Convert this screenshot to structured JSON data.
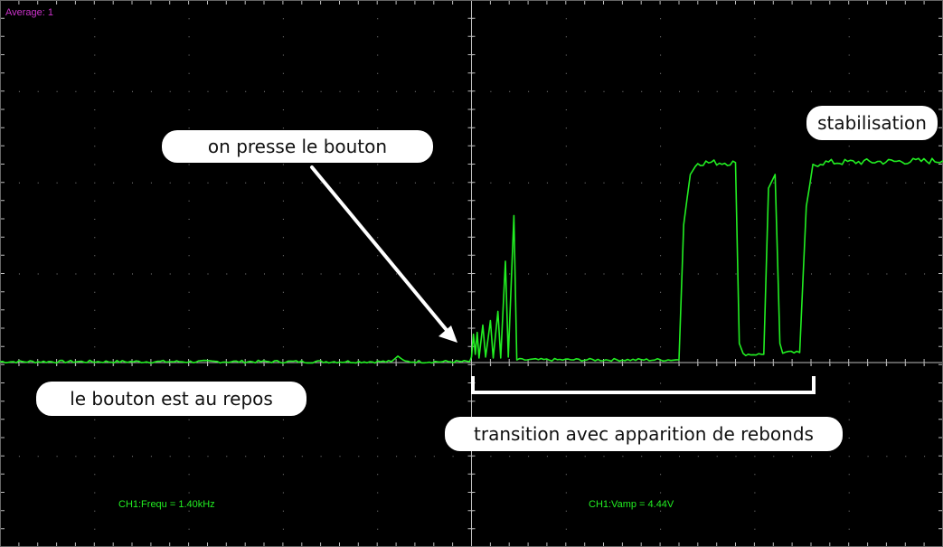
{
  "scope": {
    "average_label": "Average: 1",
    "freq_readout": "CH1:Frequ = 1.40kHz",
    "vamp_readout": "CH1:Vamp = 4.44V"
  },
  "annotations": {
    "stabilisation": "stabilisation",
    "press": "on presse le bouton",
    "rest": "le bouton est au repos",
    "transition": "transition avec apparition de rebonds"
  },
  "colors": {
    "background": "#000000",
    "grid": "#bdbdbd",
    "trace": "#22ee22",
    "average_text": "#cc33cc",
    "label_bg": "#ffffff"
  },
  "chart_data": {
    "type": "line",
    "title": "",
    "xlabel": "",
    "ylabel": "",
    "xlim": [
      0,
      10
    ],
    "ylim": [
      -2,
      4
    ],
    "grid": true,
    "series": [
      {
        "name": "CH1",
        "points": [
          [
            0,
            0
          ],
          [
            4.15,
            0
          ],
          [
            4.22,
            0.06
          ],
          [
            4.3,
            0
          ],
          [
            4.98,
            0
          ],
          [
            5.0,
            0.05
          ],
          [
            5.02,
            0.3
          ],
          [
            5.04,
            0.08
          ],
          [
            5.06,
            0.32
          ],
          [
            5.08,
            0.04
          ],
          [
            5.12,
            0.4
          ],
          [
            5.15,
            0.05
          ],
          [
            5.2,
            0.45
          ],
          [
            5.23,
            0.04
          ],
          [
            5.28,
            0.55
          ],
          [
            5.31,
            0.04
          ],
          [
            5.36,
            1.1
          ],
          [
            5.39,
            0.05
          ],
          [
            5.45,
            1.6
          ],
          [
            5.48,
            0.02
          ],
          [
            7.2,
            0.02
          ],
          [
            7.25,
            1.5
          ],
          [
            7.32,
            2.05
          ],
          [
            7.4,
            2.18
          ],
          [
            7.8,
            2.18
          ],
          [
            7.84,
            0.2
          ],
          [
            7.88,
            0.08
          ],
          [
            8.1,
            0.08
          ],
          [
            8.15,
            1.9
          ],
          [
            8.22,
            2.05
          ],
          [
            8.27,
            0.2
          ],
          [
            8.3,
            0.1
          ],
          [
            8.48,
            0.1
          ],
          [
            8.55,
            1.7
          ],
          [
            8.62,
            2.14
          ],
          [
            8.7,
            2.18
          ],
          [
            10,
            2.2
          ]
        ]
      }
    ],
    "annotations": [
      {
        "text": "on presse le bouton",
        "arrow_to": [
          4.88,
          0.25
        ]
      },
      {
        "text": "transition avec apparition de rebonds",
        "bracket_x": [
          5.02,
          8.66
        ]
      }
    ]
  }
}
